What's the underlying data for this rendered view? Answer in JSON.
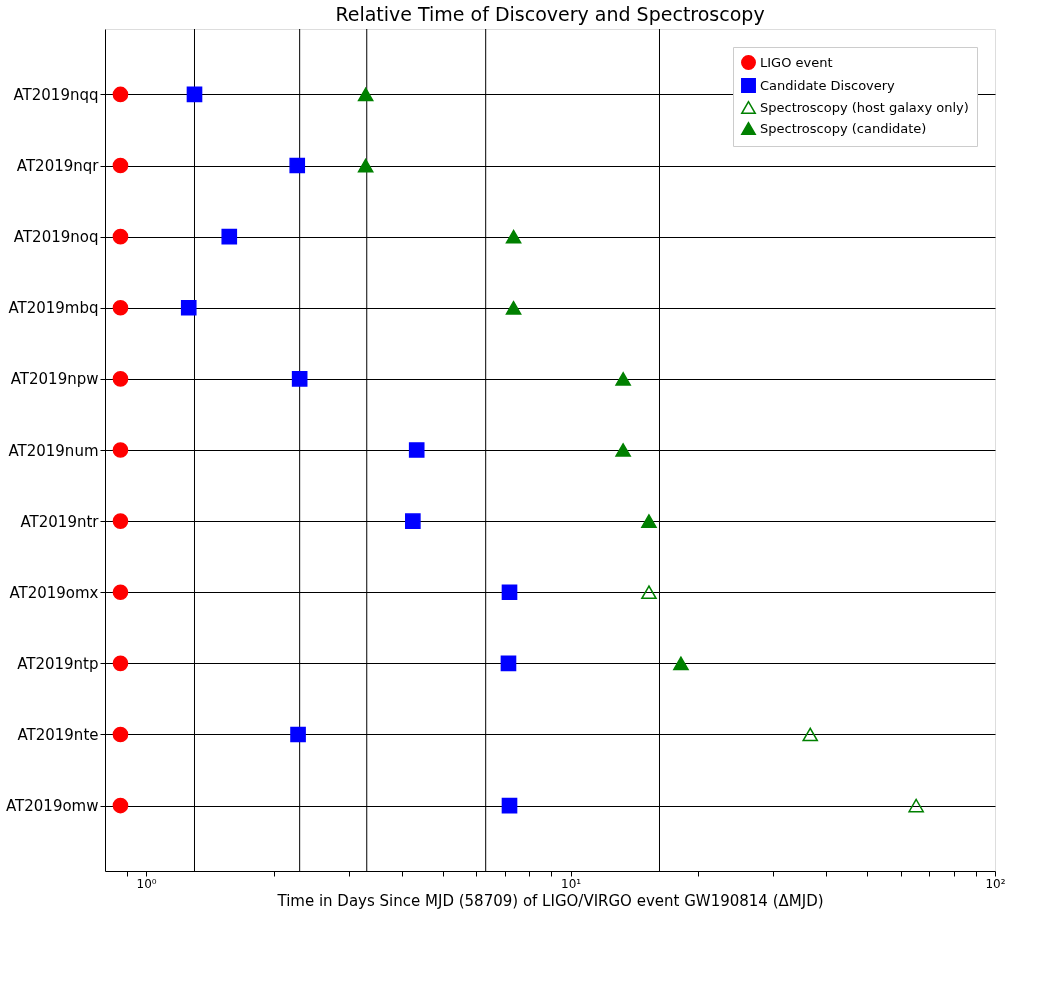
{
  "chart_data": {
    "type": "scatter",
    "title": "Relative Time of Discovery and Spectroscopy",
    "xlabel": "Time in Days Since MJD (58709) of LIGO/VIRGO event GW190814 (ΔMJD)",
    "categories": [
      "AT2019nqq",
      "AT2019nqr",
      "AT2019noq",
      "AT2019mbq",
      "AT2019npw",
      "AT2019num",
      "AT2019ntr",
      "AT2019omx",
      "AT2019ntp",
      "AT2019nte",
      "AT2019omw"
    ],
    "log": "x",
    "xlim": [
      0.8,
      100
    ],
    "xticks": [
      {
        "value": 0.9,
        "label": null
      },
      {
        "value": 1,
        "label": "10⁰"
      },
      {
        "value": 2,
        "label": null
      },
      {
        "value": 3,
        "label": null
      },
      {
        "value": 4,
        "label": null
      },
      {
        "value": 5,
        "label": null
      },
      {
        "value": 6,
        "label": null
      },
      {
        "value": 7,
        "label": null
      },
      {
        "value": 8,
        "label": null
      },
      {
        "value": 9,
        "label": null
      },
      {
        "value": 10,
        "label": "10¹"
      },
      {
        "value": 20,
        "label": null
      },
      {
        "value": 30,
        "label": null
      },
      {
        "value": 40,
        "label": null
      },
      {
        "value": 50,
        "label": null
      },
      {
        "value": 60,
        "label": null
      },
      {
        "value": 70,
        "label": null
      },
      {
        "value": 80,
        "label": null
      },
      {
        "value": 90,
        "label": null
      },
      {
        "value": 100,
        "label": "10²"
      }
    ],
    "grid": "y",
    "legend": "top right",
    "orientation": "horizontal",
    "series": [
      {
        "name": "LIGO event",
        "color": "#ff0000",
        "marker": "circle",
        "values": [
          0.87,
          0.87,
          0.87,
          0.87,
          0.87,
          0.87,
          0.87,
          0.87,
          0.87,
          0.87,
          0.87
        ]
      },
      {
        "name": "Candidate Discovery",
        "color": "#0000ff",
        "marker": "square",
        "values": [
          1.3,
          2.27,
          1.57,
          1.26,
          2.3,
          4.34,
          4.25,
          7.18,
          7.14,
          2.28,
          7.18
        ]
      },
      {
        "name": "Spectroscopy (host galaxy only)",
        "color": "#008000",
        "marker": "triangle",
        "values": [
          null,
          null,
          null,
          null,
          null,
          null,
          null,
          15.3,
          null,
          36.7,
          65.2
        ]
      },
      {
        "name": "Spectroscopy (candidate)",
        "color": "#008000",
        "marker": "triangle",
        "values": [
          3.29,
          3.29,
          7.34,
          7.34,
          13.3,
          13.3,
          15.3,
          null,
          18.2,
          null,
          null
        ]
      }
    ],
    "ref_lines": [
      {
        "axis": "x",
        "value": 1.3,
        "color": "#000000"
      },
      {
        "axis": "x",
        "value": 2.3,
        "color": "#000000"
      },
      {
        "axis": "x",
        "value": 3.31,
        "color": "#000000"
      },
      {
        "axis": "x",
        "value": 6.31,
        "color": "#000000"
      },
      {
        "axis": "x",
        "value": 16.2,
        "color": "#000000"
      }
    ]
  }
}
